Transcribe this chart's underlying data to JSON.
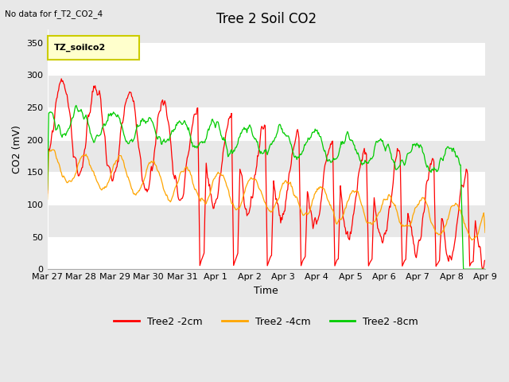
{
  "title": "Tree 2 Soil CO2",
  "subtitle": "No data for f_T2_CO2_4",
  "ylabel": "CO2 (mV)",
  "xlabel": "Time",
  "legend_label": "TZ_soilco2",
  "ylim": [
    0,
    370
  ],
  "figsize": [
    6.4,
    4.8
  ],
  "dpi": 100,
  "series": {
    "Tree2 -2cm": {
      "color": "#ff0000"
    },
    "Tree2 -4cm": {
      "color": "#ffa500"
    },
    "Tree2 -8cm": {
      "color": "#00cc00"
    }
  },
  "xtick_labels": [
    "Mar 27",
    "Mar 28",
    "Mar 29",
    "Mar 30",
    "Mar 31",
    "Apr 1",
    "Apr 2",
    "Apr 3",
    "Apr 4",
    "Apr 5",
    "Apr 6",
    "Apr 7",
    "Apr 8",
    "Apr 9"
  ],
  "ytick_labels": [
    0,
    50,
    100,
    150,
    200,
    250,
    300,
    350
  ],
  "title_fontsize": 12,
  "label_fontsize": 9,
  "tick_fontsize": 8,
  "legend_box_facecolor": "#ffffcc",
  "legend_box_edgecolor": "#cccc00",
  "bg_color": "#e8e8e8",
  "band_color_dark": "#d8d8d8",
  "band_color_light": "#ebebeb",
  "grid_color": "#ffffff"
}
